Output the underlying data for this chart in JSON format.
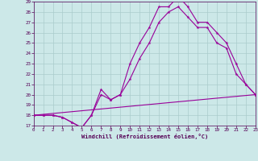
{
  "background_color": "#cce8e8",
  "grid_color": "#aacccc",
  "line_color": "#990099",
  "xlabel": "Windchill (Refroidissement éolien,°C)",
  "xlim": [
    0,
    23
  ],
  "ylim": [
    17,
    29
  ],
  "yticks": [
    17,
    18,
    19,
    20,
    21,
    22,
    23,
    24,
    25,
    26,
    27,
    28,
    29
  ],
  "xticks": [
    0,
    1,
    2,
    3,
    4,
    5,
    6,
    7,
    8,
    9,
    10,
    11,
    12,
    13,
    14,
    15,
    16,
    17,
    18,
    19,
    20,
    21,
    22,
    23
  ],
  "curve1_x": [
    0,
    1,
    2,
    3,
    4,
    5,
    6,
    7,
    8,
    9,
    10,
    11,
    12,
    13,
    14,
    15,
    16,
    17,
    18,
    19,
    20,
    21,
    22,
    23
  ],
  "curve1_y": [
    18.0,
    18.0,
    18.0,
    17.8,
    17.3,
    16.8,
    18.0,
    20.5,
    19.5,
    20.0,
    23.0,
    25.0,
    26.5,
    28.5,
    28.5,
    29.5,
    28.5,
    27.0,
    27.0,
    26.0,
    25.0,
    23.0,
    21.0,
    20.0
  ],
  "curve2_x": [
    0,
    1,
    2,
    3,
    4,
    5,
    6,
    7,
    8,
    9,
    10,
    11,
    12,
    13,
    14,
    15,
    16,
    17,
    18,
    19,
    20,
    21,
    22,
    23
  ],
  "curve2_y": [
    18.0,
    18.0,
    18.0,
    17.8,
    17.3,
    16.8,
    18.0,
    20.0,
    19.5,
    20.0,
    21.5,
    23.5,
    25.0,
    27.0,
    28.0,
    28.5,
    27.5,
    26.5,
    26.5,
    25.0,
    24.5,
    22.0,
    21.0,
    20.0
  ],
  "line_x": [
    0,
    23
  ],
  "line_y": [
    18.0,
    20.0
  ]
}
